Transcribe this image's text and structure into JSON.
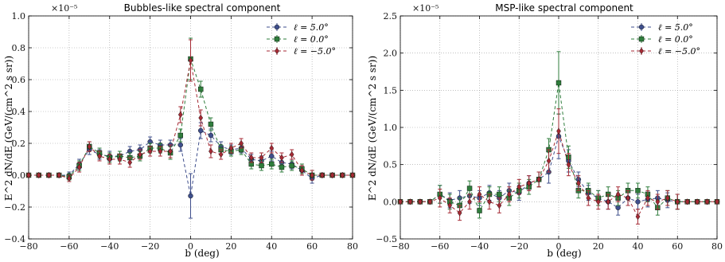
{
  "chart_data": [
    {
      "type": "line",
      "title": "Bubbles-like spectral component",
      "xlabel": "b (deg)",
      "ylabel": "E^2 dN/dE (GeV/(cm^2 s sr))",
      "multiplier": "×10⁻⁵",
      "xlim": [
        -80,
        80
      ],
      "ylim": [
        -0.4,
        1.0
      ],
      "xticks": [
        -80,
        -60,
        -40,
        -20,
        0,
        20,
        40,
        60,
        80
      ],
      "yticks": [
        -0.4,
        -0.2,
        0.0,
        0.2,
        0.4,
        0.6,
        0.8,
        1.0
      ],
      "ytick_labels": [
        "−0.4",
        "−0.2",
        "0.0",
        "0.2",
        "0.4",
        "0.6",
        "0.8",
        "1.0"
      ],
      "xtick_labels": [
        "−80",
        "−60",
        "−40",
        "−20",
        "0",
        "20",
        "40",
        "60",
        "80"
      ],
      "grid": true,
      "legend_position": "top-right",
      "series": [
        {
          "name": "ℓ = 5.0°",
          "color": "#3f4f8c",
          "marker": "circle",
          "x": [
            -80,
            -75,
            -70,
            -65,
            -60,
            -55,
            -50,
            -45,
            -40,
            -35,
            -30,
            -25,
            -20,
            -15,
            -10,
            -5,
            0,
            5,
            10,
            15,
            20,
            25,
            30,
            35,
            40,
            45,
            50,
            55,
            60,
            65,
            70,
            75,
            80
          ],
          "y": [
            0.0,
            0.0,
            0.0,
            0.0,
            0.0,
            0.07,
            0.16,
            0.13,
            0.12,
            0.12,
            0.15,
            0.16,
            0.21,
            0.19,
            0.19,
            0.19,
            -0.13,
            0.28,
            0.25,
            0.18,
            0.16,
            0.17,
            0.1,
            0.09,
            0.12,
            0.08,
            0.07,
            0.03,
            -0.02,
            0.0,
            0.0,
            0.0,
            0.0
          ],
          "err": [
            0.01,
            0.01,
            0.01,
            0.01,
            0.02,
            0.03,
            0.03,
            0.03,
            0.03,
            0.03,
            0.03,
            0.03,
            0.03,
            0.03,
            0.03,
            0.04,
            0.14,
            0.05,
            0.04,
            0.03,
            0.03,
            0.03,
            0.03,
            0.03,
            0.03,
            0.03,
            0.03,
            0.03,
            0.03,
            0.01,
            0.01,
            0.01,
            0.01
          ]
        },
        {
          "name": "ℓ = 0.0°",
          "color": "#2f7d3c",
          "marker": "square",
          "x": [
            -80,
            -75,
            -70,
            -65,
            -60,
            -55,
            -50,
            -45,
            -40,
            -35,
            -30,
            -25,
            -20,
            -15,
            -10,
            -5,
            0,
            5,
            10,
            15,
            20,
            25,
            30,
            35,
            40,
            45,
            50,
            55,
            60,
            65,
            70,
            75,
            80
          ],
          "y": [
            0.0,
            0.0,
            0.0,
            0.0,
            -0.01,
            0.06,
            0.18,
            0.14,
            0.11,
            0.12,
            0.11,
            0.12,
            0.17,
            0.17,
            0.14,
            0.25,
            0.73,
            0.54,
            0.32,
            0.16,
            0.15,
            0.16,
            0.07,
            0.06,
            0.07,
            0.05,
            0.06,
            0.04,
            0.0,
            0.0,
            0.0,
            0.0,
            0.0
          ],
          "err": [
            0.01,
            0.01,
            0.01,
            0.01,
            0.02,
            0.03,
            0.03,
            0.03,
            0.03,
            0.03,
            0.03,
            0.03,
            0.03,
            0.03,
            0.04,
            0.04,
            0.13,
            0.05,
            0.04,
            0.03,
            0.03,
            0.03,
            0.03,
            0.03,
            0.03,
            0.03,
            0.03,
            0.03,
            0.03,
            0.01,
            0.01,
            0.01,
            0.01
          ]
        },
        {
          "name": "ℓ = −5.0°",
          "color": "#a52a34",
          "marker": "diamond",
          "x": [
            -80,
            -75,
            -70,
            -65,
            -60,
            -55,
            -50,
            -45,
            -40,
            -35,
            -30,
            -25,
            -20,
            -15,
            -10,
            -5,
            0,
            5,
            10,
            15,
            20,
            25,
            30,
            35,
            40,
            45,
            50,
            55,
            60,
            65,
            70,
            75,
            80
          ],
          "y": [
            0.0,
            0.0,
            0.0,
            0.0,
            -0.02,
            0.05,
            0.18,
            0.12,
            0.1,
            0.1,
            0.08,
            0.13,
            0.15,
            0.15,
            0.15,
            0.38,
            0.72,
            0.36,
            0.15,
            0.13,
            0.17,
            0.2,
            0.11,
            0.11,
            0.17,
            0.11,
            0.13,
            0.03,
            0.0,
            0.0,
            0.0,
            0.0,
            0.0
          ],
          "err": [
            0.01,
            0.01,
            0.01,
            0.01,
            0.02,
            0.03,
            0.03,
            0.03,
            0.03,
            0.03,
            0.03,
            0.03,
            0.03,
            0.03,
            0.04,
            0.05,
            0.13,
            0.05,
            0.04,
            0.03,
            0.03,
            0.03,
            0.03,
            0.03,
            0.03,
            0.03,
            0.03,
            0.03,
            0.03,
            0.01,
            0.01,
            0.01,
            0.01
          ]
        }
      ]
    },
    {
      "type": "line",
      "title": "MSP-like spectral component",
      "xlabel": "b (deg)",
      "ylabel": "E^2 dN/dE (GeV/(cm^2 s sr))",
      "multiplier": "×10⁻⁵",
      "xlim": [
        -80,
        80
      ],
      "ylim": [
        -0.5,
        2.5
      ],
      "xticks": [
        -80,
        -60,
        -40,
        -20,
        0,
        20,
        40,
        60,
        80
      ],
      "yticks": [
        -0.5,
        0.0,
        0.5,
        1.0,
        1.5,
        2.0,
        2.5
      ],
      "ytick_labels": [
        "−0.5",
        "0.0",
        "0.5",
        "1.0",
        "1.5",
        "2.0",
        "2.5"
      ],
      "xtick_labels": [
        "−80",
        "−60",
        "−40",
        "−20",
        "0",
        "20",
        "40",
        "60",
        "80"
      ],
      "grid": true,
      "legend_position": "top-right",
      "series": [
        {
          "name": "ℓ = 5.0°",
          "color": "#3f4f8c",
          "marker": "circle",
          "x": [
            -80,
            -75,
            -70,
            -65,
            -60,
            -55,
            -50,
            -45,
            -40,
            -35,
            -30,
            -25,
            -20,
            -15,
            -10,
            -5,
            0,
            5,
            10,
            15,
            20,
            25,
            30,
            35,
            40,
            45,
            50,
            55,
            60,
            65,
            70,
            75,
            80
          ],
          "y": [
            0.0,
            0.0,
            0.0,
            0.0,
            0.1,
            0.02,
            0.05,
            0.08,
            0.05,
            0.12,
            0.05,
            0.15,
            0.12,
            0.25,
            0.3,
            0.4,
            0.88,
            0.55,
            0.3,
            0.12,
            0.05,
            0.0,
            -0.08,
            0.05,
            0.0,
            0.03,
            0.05,
            0.02,
            0.0,
            0.0,
            0.0,
            0.0,
            0.0
          ],
          "err": [
            0.02,
            0.02,
            0.02,
            0.02,
            0.12,
            0.1,
            0.1,
            0.1,
            0.1,
            0.1,
            0.1,
            0.1,
            0.1,
            0.1,
            0.1,
            0.15,
            0.3,
            0.15,
            0.1,
            0.1,
            0.1,
            0.1,
            0.1,
            0.1,
            0.1,
            0.1,
            0.1,
            0.1,
            0.1,
            0.02,
            0.02,
            0.02,
            0.02
          ]
        },
        {
          "name": "ℓ = 0.0°",
          "color": "#2f7d3c",
          "marker": "square",
          "x": [
            -80,
            -75,
            -70,
            -65,
            -60,
            -55,
            -50,
            -45,
            -40,
            -35,
            -30,
            -25,
            -20,
            -15,
            -10,
            -5,
            0,
            5,
            10,
            15,
            20,
            25,
            30,
            35,
            40,
            45,
            50,
            55,
            60,
            65,
            70,
            75,
            80
          ],
          "y": [
            0.0,
            0.0,
            0.0,
            0.0,
            0.1,
            0.0,
            -0.05,
            0.18,
            -0.12,
            0.1,
            0.1,
            0.05,
            0.15,
            0.2,
            0.3,
            0.7,
            1.6,
            0.6,
            0.15,
            0.15,
            0.05,
            0.1,
            0.05,
            0.15,
            0.15,
            0.1,
            -0.08,
            0.05,
            0.0,
            0.0,
            0.0,
            0.0,
            0.0
          ],
          "err": [
            0.02,
            0.02,
            0.02,
            0.02,
            0.12,
            0.1,
            0.1,
            0.1,
            0.1,
            0.1,
            0.1,
            0.1,
            0.1,
            0.1,
            0.1,
            0.15,
            0.42,
            0.15,
            0.1,
            0.1,
            0.1,
            0.1,
            0.1,
            0.1,
            0.1,
            0.1,
            0.1,
            0.1,
            0.1,
            0.02,
            0.02,
            0.02,
            0.02
          ]
        },
        {
          "name": "ℓ = −5.0°",
          "color": "#a52a34",
          "marker": "diamond",
          "x": [
            -80,
            -75,
            -70,
            -65,
            -60,
            -55,
            -50,
            -45,
            -40,
            -35,
            -30,
            -25,
            -20,
            -15,
            -10,
            -5,
            0,
            5,
            10,
            15,
            20,
            25,
            30,
            35,
            40,
            45,
            50,
            55,
            60,
            65,
            70,
            75,
            80
          ],
          "y": [
            0.0,
            0.0,
            0.0,
            0.0,
            0.05,
            -0.05,
            -0.15,
            0.0,
            0.1,
            0.0,
            -0.05,
            0.1,
            0.2,
            0.25,
            0.3,
            0.55,
            0.95,
            0.5,
            0.25,
            0.05,
            0.0,
            0.0,
            0.1,
            0.05,
            -0.2,
            0.05,
            0.0,
            0.05,
            0.0,
            0.0,
            0.0,
            0.0,
            0.0
          ],
          "err": [
            0.02,
            0.02,
            0.02,
            0.02,
            0.12,
            0.1,
            0.1,
            0.1,
            0.1,
            0.1,
            0.1,
            0.1,
            0.1,
            0.1,
            0.1,
            0.15,
            0.3,
            0.15,
            0.1,
            0.1,
            0.1,
            0.1,
            0.1,
            0.1,
            0.1,
            0.1,
            0.1,
            0.1,
            0.1,
            0.02,
            0.02,
            0.02,
            0.02
          ]
        }
      ]
    }
  ]
}
